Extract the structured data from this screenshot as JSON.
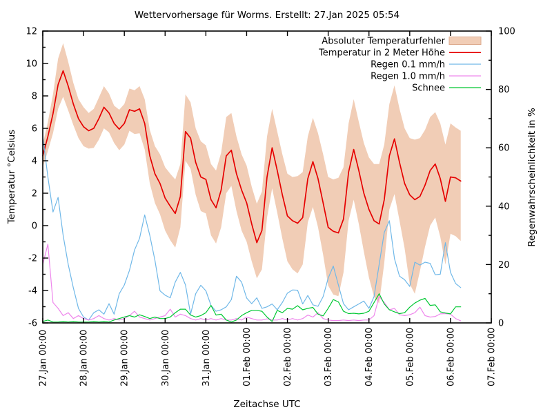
{
  "title": "Wettervorhersage für Worms. Erstellt: 27.Jan 2025 05:54",
  "axes": {
    "x_label": "Zeitachse UTC",
    "y_label": "Temperatur °Celsius",
    "y2_label": "Regenwahrscheinlichkeit in %",
    "y_ticks": [
      -6,
      -4,
      -2,
      0,
      2,
      4,
      6,
      8,
      10,
      12
    ],
    "y2_ticks": [
      0,
      20,
      40,
      60,
      80,
      100
    ],
    "x_tick_labels": [
      "27.Jan 00:00",
      "28.Jan 00:00",
      "29.Jan 00:00",
      "30.Jan 00:00",
      "31.Jan 00:00",
      "01.Feb 00:00",
      "02.Feb 00:00",
      "03.Feb 00:00",
      "04.Feb 00:00",
      "05.Feb 00:00",
      "06.Feb 00:00",
      "07.Feb 00:00"
    ]
  },
  "colors": {
    "band": "#f1cdb6",
    "band_border": "#ddab8e",
    "temperature": "#e60000",
    "rain01": "#70b8e8",
    "rain10": "#ee86ec",
    "snow": "#00c832",
    "frame": "#000000",
    "background": "#ffffff"
  },
  "legend": [
    {
      "label": "Absoluter Temperaturfehler",
      "swatch": "band"
    },
    {
      "label": "Temperatur in 2 Meter Höhe",
      "swatch": "temperature"
    },
    {
      "label": "Regen 0.1 mm/h",
      "swatch": "rain01"
    },
    {
      "label": "Regen 1.0 mm/h",
      "swatch": "rain10"
    },
    {
      "label": "Schnee",
      "swatch": "snow"
    }
  ],
  "chart_data": {
    "type": "line",
    "title": "Wettervorhersage für Worms. Erstellt: 27.Jan 2025 05:54",
    "xlabel": "Zeitachse UTC",
    "ylabel": "Temperatur °Celsius",
    "y2label": "Regenwahrscheinlichkeit in %",
    "ylim": [
      -6,
      12
    ],
    "y2lim": [
      0,
      100
    ],
    "x_range_days": [
      0,
      11
    ],
    "x_tick_labels": [
      "27.Jan 00:00",
      "28.Jan 00:00",
      "29.Jan 00:00",
      "30.Jan 00:00",
      "31.Jan 00:00",
      "01.Feb 00:00",
      "02.Feb 00:00",
      "03.Feb 00:00",
      "04.Feb 00:00",
      "05.Feb 00:00",
      "06.Feb 00:00",
      "07.Feb 00:00"
    ],
    "sample_step_hours": 3,
    "series": [
      {
        "name": "Absoluter Temperaturfehler",
        "type": "band",
        "axis": "y1",
        "color_key": "band",
        "upper_offset": [
          0.7,
          0.9,
          1.2,
          1.6,
          1.7,
          1.5,
          1.3,
          1.2,
          1.2,
          1.1,
          1.2,
          1.3,
          1.3,
          1.2,
          1.1,
          1.2,
          1.2,
          1.3,
          1.3,
          1.4,
          1.5,
          1.6,
          1.7,
          1.8,
          1.9,
          2.0,
          2.1,
          2.0,
          2.3,
          2.2,
          2.1,
          2.2,
          2.1,
          2.2,
          2.3,
          2.3,
          2.4,
          2.3,
          2.3,
          2.2,
          2.3,
          2.3,
          2.4,
          2.4,
          2.5,
          2.4,
          2.4,
          2.5,
          2.6,
          2.7,
          2.9,
          2.8,
          2.6,
          2.7,
          2.8,
          3.0,
          3.1,
          3.2,
          3.4,
          3.2,
          3.0,
          3.1,
          3.0,
          3.1,
          3.2,
          3.5,
          3.7,
          3.4,
          3.2,
          3.3,
          3.3,
          3.4,
          3.5,
          3.7,
          3.6,
          3.4,
          3.3,
          3.2,
          3.4,
          3.5,
          3.3,
          3.1,
          3.1
        ],
        "lower_offset": [
          0.7,
          0.9,
          1.2,
          1.5,
          1.6,
          1.5,
          1.3,
          1.2,
          1.2,
          1.1,
          1.2,
          1.3,
          1.3,
          1.2,
          1.2,
          1.3,
          1.3,
          1.3,
          1.4,
          1.5,
          1.6,
          1.7,
          1.8,
          1.9,
          2.0,
          2.1,
          2.1,
          1.9,
          1.8,
          1.9,
          2.0,
          2.1,
          2.1,
          2.2,
          2.2,
          2.3,
          2.3,
          2.2,
          2.3,
          2.5,
          2.4,
          2.3,
          2.2,
          2.4,
          2.5,
          2.5,
          2.6,
          2.7,
          2.8,
          3.0,
          3.1,
          2.9,
          2.7,
          2.8,
          3.0,
          3.2,
          3.6,
          3.9,
          3.9,
          3.3,
          3.0,
          3.1,
          3.3,
          3.6,
          4.2,
          4.7,
          4.9,
          3.9,
          3.3,
          3.4,
          3.6,
          4.0,
          5.5,
          5.8,
          4.6,
          3.8,
          3.4,
          3.3,
          3.6,
          3.9,
          3.5,
          3.6,
          3.7
        ]
      },
      {
        "name": "Temperatur in 2 Meter Höhe",
        "type": "line",
        "axis": "y1",
        "color_key": "temperature",
        "values": [
          4.3,
          5.5,
          6.9,
          8.7,
          9.55,
          8.6,
          7.5,
          6.6,
          6.1,
          5.85,
          6.0,
          6.6,
          7.3,
          6.95,
          6.3,
          5.95,
          6.3,
          7.15,
          7.05,
          7.2,
          6.3,
          4.3,
          3.2,
          2.6,
          1.7,
          1.2,
          0.75,
          1.8,
          5.8,
          5.4,
          3.9,
          3.0,
          2.85,
          1.6,
          1.1,
          2.2,
          4.3,
          4.65,
          3.2,
          2.2,
          1.4,
          0.1,
          -1.05,
          -0.3,
          3.0,
          4.8,
          3.4,
          1.9,
          0.6,
          0.3,
          0.15,
          0.5,
          2.9,
          3.95,
          2.9,
          1.4,
          -0.1,
          -0.35,
          -0.45,
          0.4,
          3.3,
          4.7,
          3.4,
          2.0,
          1.0,
          0.3,
          0.1,
          1.6,
          4.3,
          5.35,
          3.9,
          2.6,
          1.9,
          1.6,
          1.8,
          2.5,
          3.4,
          3.8,
          2.9,
          1.5,
          3.0,
          2.95,
          2.75
        ]
      },
      {
        "name": "Regen 0.1 mm/h",
        "type": "line",
        "axis": "y2",
        "color_key": "rain01",
        "values": [
          64,
          50,
          38,
          43,
          30,
          20,
          12,
          5,
          2,
          1,
          3.5,
          4.5,
          3,
          6.6,
          3,
          10,
          13,
          18,
          25,
          29,
          37,
          30,
          21.5,
          11,
          9.5,
          8.6,
          14,
          17.3,
          13,
          3,
          10,
          12.9,
          11,
          6,
          4,
          4.5,
          5.5,
          8,
          16,
          14,
          8.5,
          6.6,
          8.6,
          5,
          5.5,
          6.5,
          4.5,
          7,
          10.2,
          11.3,
          11.2,
          6.5,
          9.4,
          6.2,
          5.7,
          9,
          15.3,
          19.5,
          13,
          6.6,
          4.5,
          5.5,
          6.5,
          7.5,
          5,
          9,
          20,
          31,
          35,
          22,
          16,
          14.8,
          12.5,
          20.8,
          19.8,
          20.8,
          20.4,
          16.5,
          16.7,
          27.5,
          17.3,
          13.5,
          12.1
        ]
      },
      {
        "name": "Regen 1.0 mm/h",
        "type": "line",
        "axis": "y2",
        "color_key": "rain10",
        "values": [
          20,
          27,
          7,
          5,
          2.5,
          3.5,
          1.5,
          2.5,
          1.5,
          1,
          1.5,
          2.5,
          1.5,
          1,
          1.5,
          1,
          1.5,
          2.5,
          4,
          2,
          1.5,
          1,
          1.5,
          2,
          2.5,
          4.7,
          2,
          3,
          2.5,
          1.5,
          1,
          1.5,
          1,
          1.5,
          1,
          1.5,
          1,
          1,
          1.5,
          1,
          2,
          1.5,
          1,
          1,
          1.4,
          1,
          1,
          1.5,
          1,
          1.5,
          1,
          1.5,
          2.7,
          2,
          3.5,
          1.5,
          1,
          0.8,
          0.8,
          1,
          0.8,
          1,
          0.8,
          1,
          1,
          2.5,
          9,
          7,
          4.5,
          5,
          2.8,
          2.5,
          2.8,
          3.5,
          5.4,
          2.5,
          2,
          2.2,
          3.1,
          3.2,
          3,
          1.5,
          0.7
        ]
      },
      {
        "name": "Schnee",
        "type": "line",
        "axis": "y2",
        "color_key": "snow",
        "values": [
          0.5,
          1,
          0.3,
          0.3,
          0.5,
          0.3,
          0.5,
          0.3,
          0.3,
          0.3,
          0.5,
          0.3,
          0.5,
          0.3,
          1,
          1.5,
          2,
          2.5,
          2,
          2.8,
          2.2,
          1.5,
          2,
          1.5,
          1.5,
          2,
          3.5,
          4.7,
          4.7,
          2.7,
          2,
          2.5,
          3.5,
          6,
          2.7,
          3,
          1,
          0.3,
          1,
          2.5,
          3.5,
          4.3,
          4.3,
          4,
          2,
          0.5,
          4.3,
          3.5,
          5,
          4.7,
          5.9,
          4.5,
          5,
          5.3,
          3,
          2.4,
          5,
          8,
          7.2,
          4,
          3.2,
          3.3,
          3.1,
          3.3,
          4,
          7,
          10,
          6.5,
          4.5,
          3.8,
          3.2,
          3.5,
          5.4,
          6.8,
          7.8,
          8.4,
          6,
          6.2,
          3.8,
          3.4,
          3.1,
          5.5,
          5.5
        ]
      }
    ]
  }
}
